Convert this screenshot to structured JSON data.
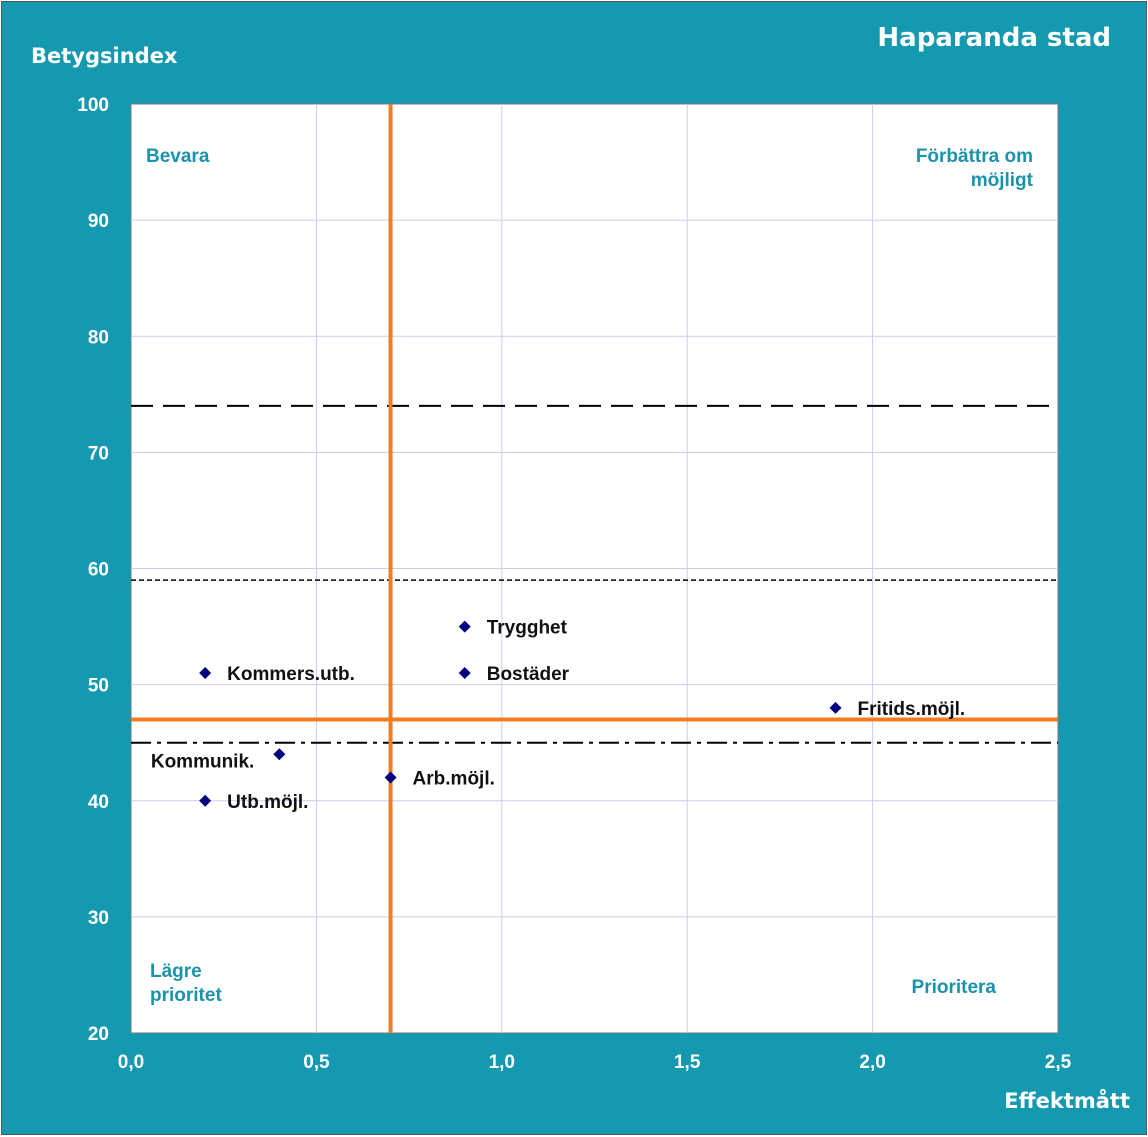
{
  "chart_data": {
    "type": "scatter",
    "title": "Haparanda stad",
    "ylabel": "Betygsindex",
    "xlabel": "Effektmått",
    "xlim": [
      0,
      2.5
    ],
    "ylim": [
      20,
      100
    ],
    "x_tick_labels": [
      "0,0",
      "0,5",
      "1,0",
      "1,5",
      "2,0",
      "2,5"
    ],
    "x_ticks": [
      0,
      0.5,
      1.0,
      1.5,
      2.0,
      2.5
    ],
    "y_ticks": [
      20,
      30,
      40,
      50,
      60,
      70,
      80,
      90,
      100
    ],
    "grid": true,
    "points": [
      {
        "label": "Trygghet",
        "x": 0.9,
        "y": 55
      },
      {
        "label": "Bostäder",
        "x": 0.9,
        "y": 51
      },
      {
        "label": "Kommers.utb.",
        "x": 0.2,
        "y": 51
      },
      {
        "label": "Fritids.möjl.",
        "x": 1.9,
        "y": 48
      },
      {
        "label": "Kommunik.",
        "x": 0.4,
        "y": 44
      },
      {
        "label": "Arb.möjl.",
        "x": 0.7,
        "y": 42
      },
      {
        "label": "Utb.möjl.",
        "x": 0.2,
        "y": 40
      }
    ],
    "reference_lines": {
      "vertical_x": 0.7,
      "horizontal_y": 47,
      "dashed_long_y": 74,
      "dashed_short_y": 59,
      "dash_dot_y": 45
    },
    "quadrant_labels": {
      "top_left": [
        "Bevara"
      ],
      "top_right": [
        "Förbättra om",
        "möjligt"
      ],
      "bottom_left": [
        "Lägre",
        "prioritet"
      ],
      "bottom_right": [
        "Prioritera"
      ]
    },
    "colors": {
      "background": "#1499b0",
      "plot_area": "#ffffff",
      "grid": "#c8cdf0",
      "reference_line": "#f47c20",
      "marker": "#000080",
      "quadrant_text": "#1b93ad"
    }
  }
}
